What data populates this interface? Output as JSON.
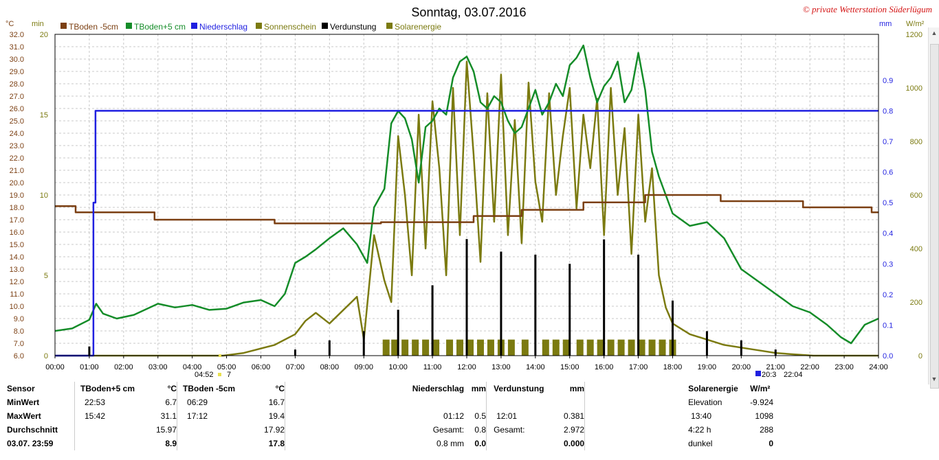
{
  "header": {
    "title": "Sonntag, 03.07.2016",
    "copyright": "© private Wetterstation Süderlügum",
    "unit_celsius": "°C",
    "unit_min": "min",
    "unit_mm": "mm",
    "unit_wm2": "W/m²"
  },
  "legend": [
    {
      "label": "TBoden -5cm",
      "color": "#7b3f12"
    },
    {
      "label": "TBoden+5 cm",
      "color": "#148c28"
    },
    {
      "label": "Niederschlag",
      "color": "#1f1fe0"
    },
    {
      "label": "Sonnenschein",
      "color": "#7b7a10"
    },
    {
      "label": "Verdunstung",
      "color": "#000000"
    },
    {
      "label": "Solarenergie",
      "color": "#7b7a10"
    }
  ],
  "sun_markers": {
    "sunrise": "04:52",
    "sunrise_tail": "7",
    "sunset": "20:3",
    "sunset_tail": "22:04"
  },
  "chart_data": {
    "type": "line",
    "title": "Sonntag, 03.07.2016",
    "x_label": "",
    "x_ticks": [
      "00:00",
      "01:00",
      "02:00",
      "03:00",
      "04:00",
      "05:00",
      "06:00",
      "07:00",
      "08:00",
      "09:00",
      "10:00",
      "11:00",
      "12:00",
      "13:00",
      "14:00",
      "15:00",
      "16:00",
      "17:00",
      "18:00",
      "19:00",
      "20:00",
      "21:00",
      "22:00",
      "23:00",
      "24:00"
    ],
    "y_celsius_ticks": [
      "6.0",
      "7.0",
      "8.0",
      "9.0",
      "10.0",
      "11.0",
      "12.0",
      "13.0",
      "14.0",
      "15.0",
      "16.0",
      "17.0",
      "18.0",
      "19.0",
      "20.0",
      "21.0",
      "22.0",
      "23.0",
      "24.0",
      "25.0",
      "26.0",
      "27.0",
      "28.0",
      "29.0",
      "30.0",
      "31.0",
      "32.0"
    ],
    "y_min_ticks": [
      "0",
      "5",
      "10",
      "15",
      "20"
    ],
    "y_mm_ticks": [
      "0.0",
      "0.1",
      "0.2",
      "0.3",
      "0.4",
      "0.5",
      "0.6",
      "0.7",
      "0.8",
      "0.9"
    ],
    "y_wm2_ticks": [
      "0",
      "200",
      "400",
      "600",
      "800",
      "1000",
      "1200"
    ],
    "ylim_celsius": [
      6,
      32
    ],
    "ylim_min": [
      0,
      20
    ],
    "ylim_mm": [
      0,
      1.05
    ],
    "ylim_wm2": [
      0,
      1200
    ],
    "grid": true,
    "series": [
      {
        "name": "TBoden -5cm",
        "axis": "celsius",
        "color": "#7b3f12",
        "step": true,
        "x": [
          0,
          0.6,
          0.6,
          2.9,
          2.9,
          6.4,
          6.4,
          9.5,
          9.5,
          12.2,
          12.2,
          13.6,
          13.6,
          15.4,
          15.4,
          17.2,
          17.2,
          19.4,
          19.4,
          21.8,
          21.8,
          23.8,
          23.8,
          24
        ],
        "y": [
          18.1,
          18.1,
          17.6,
          17.6,
          17.0,
          17.0,
          16.7,
          16.7,
          16.8,
          16.8,
          17.3,
          17.3,
          17.8,
          17.8,
          18.4,
          18.4,
          19.0,
          19.0,
          18.5,
          18.5,
          18.0,
          18.0,
          17.6,
          17.6
        ]
      },
      {
        "name": "TBoden+5 cm",
        "axis": "celsius",
        "color": "#148c28",
        "x": [
          0,
          0.5,
          1.0,
          1.2,
          1.4,
          1.8,
          2.3,
          3.0,
          3.5,
          4.0,
          4.5,
          5.0,
          5.5,
          6.0,
          6.4,
          6.7,
          7.0,
          7.3,
          7.6,
          8.0,
          8.4,
          8.8,
          9.1,
          9.3,
          9.6,
          9.8,
          10.0,
          10.2,
          10.4,
          10.6,
          10.8,
          11.0,
          11.2,
          11.4,
          11.6,
          11.8,
          12.0,
          12.2,
          12.4,
          12.6,
          12.8,
          13.0,
          13.2,
          13.4,
          13.6,
          13.8,
          14.0,
          14.2,
          14.4,
          14.6,
          14.8,
          15.0,
          15.2,
          15.4,
          15.6,
          15.8,
          16.0,
          16.2,
          16.4,
          16.6,
          16.8,
          17.0,
          17.2,
          17.4,
          17.6,
          18.0,
          18.5,
          19.0,
          19.5,
          20.0,
          20.5,
          21.0,
          21.5,
          22.0,
          22.5,
          22.9,
          23.2,
          23.6,
          24
        ],
        "y": [
          8.0,
          8.2,
          8.9,
          10.2,
          9.4,
          9.0,
          9.3,
          10.2,
          9.9,
          10.1,
          9.7,
          9.8,
          10.3,
          10.5,
          10.0,
          11.0,
          13.5,
          14.0,
          14.6,
          15.5,
          16.3,
          15.0,
          13.5,
          18.0,
          19.5,
          24.8,
          25.8,
          25.2,
          23.5,
          20.0,
          24.5,
          25.0,
          26.0,
          25.5,
          28.5,
          29.8,
          30.2,
          29.0,
          26.5,
          26.0,
          27.0,
          26.5,
          25.0,
          24.0,
          24.5,
          26.0,
          27.5,
          25.5,
          26.5,
          28.0,
          27.0,
          29.5,
          30.1,
          31.1,
          28.5,
          26.5,
          27.8,
          28.5,
          29.8,
          26.5,
          27.5,
          30.5,
          27.5,
          22.5,
          20.5,
          17.5,
          16.5,
          16.8,
          15.5,
          13.0,
          12.0,
          11.0,
          10.0,
          9.5,
          8.5,
          7.5,
          7.0,
          8.5,
          9.0
        ]
      },
      {
        "name": "Niederschlag",
        "axis": "mm",
        "color": "#1f1fe0",
        "step": true,
        "x": [
          0,
          1.12,
          1.12,
          1.18,
          1.18,
          24
        ],
        "y": [
          0,
          0,
          0.5,
          0.5,
          0.8,
          0.8
        ]
      },
      {
        "name": "Solarenergie",
        "axis": "wm2",
        "color": "#7b7a10",
        "x": [
          0,
          4.9,
          5.5,
          6.4,
          7.0,
          7.3,
          7.6,
          8.0,
          8.4,
          8.8,
          9.0,
          9.3,
          9.6,
          9.8,
          10.0,
          10.2,
          10.4,
          10.6,
          10.8,
          11.0,
          11.2,
          11.4,
          11.6,
          11.8,
          12.0,
          12.2,
          12.4,
          12.6,
          12.8,
          13.0,
          13.2,
          13.4,
          13.6,
          13.8,
          14.0,
          14.2,
          14.4,
          14.6,
          14.8,
          15.0,
          15.2,
          15.4,
          15.6,
          15.8,
          16.0,
          16.2,
          16.4,
          16.6,
          16.8,
          17.0,
          17.2,
          17.4,
          17.6,
          17.8,
          18.0,
          18.5,
          19.0,
          19.5,
          20.0,
          20.5,
          21.0,
          21.5,
          22.1,
          24
        ],
        "y": [
          0,
          0,
          10,
          40,
          80,
          130,
          160,
          120,
          170,
          220,
          60,
          450,
          280,
          200,
          820,
          600,
          300,
          900,
          400,
          950,
          700,
          300,
          1000,
          450,
          1098,
          750,
          350,
          980,
          500,
          1050,
          450,
          880,
          420,
          1020,
          650,
          500,
          980,
          600,
          820,
          1000,
          550,
          900,
          700,
          960,
          450,
          1000,
          600,
          850,
          380,
          900,
          500,
          700,
          300,
          180,
          120,
          80,
          60,
          40,
          30,
          20,
          10,
          5,
          0,
          0
        ]
      },
      {
        "name": "Sonnenschein",
        "axis": "min",
        "color": "#7b7a10",
        "bars": true,
        "x": [
          9.55,
          9.8,
          10.1,
          10.4,
          10.7,
          11.0,
          11.4,
          11.7,
          12.0,
          12.3,
          12.6,
          12.9,
          13.2,
          13.6,
          14.2,
          14.5,
          14.8,
          15.2,
          15.5,
          15.8,
          16.1,
          16.4,
          16.7,
          17.0,
          17.3,
          17.6,
          17.9
        ],
        "y": [
          1,
          1,
          1,
          1,
          1,
          1,
          1,
          1,
          1,
          1,
          1,
          1,
          1,
          1,
          1,
          1,
          1,
          1,
          1,
          1,
          1,
          1,
          1,
          1,
          1,
          1,
          1
        ]
      },
      {
        "name": "Verdunstung",
        "axis": "mm",
        "color": "#000000",
        "bars": true,
        "x": [
          1.0,
          7.0,
          8.0,
          9.0,
          10.0,
          11.0,
          12.0,
          13.0,
          14.0,
          15.0,
          16.0,
          17.0,
          18.0,
          19.0,
          20.0,
          21.0
        ],
        "y": [
          0.03,
          0.02,
          0.05,
          0.08,
          0.15,
          0.23,
          0.381,
          0.34,
          0.33,
          0.3,
          0.38,
          0.33,
          0.18,
          0.08,
          0.05,
          0.02
        ]
      }
    ]
  },
  "stats": {
    "sensor_label": "Sensor",
    "row_labels": [
      "MinWert",
      "MaxWert",
      "Durchschnitt",
      "03.07. 23:59"
    ],
    "t5_header": "TBoden+5 cm",
    "t5_unit": "°C",
    "t5_min_time": "22:53",
    "t5_min": "6.7",
    "t5_max_time": "15:42",
    "t5_max": "31.1",
    "t5_avg": "15.97",
    "t5_now": "8.9",
    "tm5_header": "TBoden -5cm",
    "tm5_unit": "°C",
    "tm5_min_time": "06:29",
    "tm5_min": "16.7",
    "tm5_max_time": "17:12",
    "tm5_max": "19.4",
    "tm5_avg": "17.92",
    "tm5_now": "17.8",
    "rain_header": "Niederschlag",
    "rain_unit": "mm",
    "rain_max_time": "01:12",
    "rain_max": "0.5",
    "rain_total_label": "Gesamt:",
    "rain_total": "0.8",
    "rain_now_label": "0.8 mm",
    "rain_now": "0.0",
    "evap_header": "Verdunstung",
    "evap_unit": "mm",
    "evap_max_time": "12:01",
    "evap_max": "0.381",
    "evap_total_label": "Gesamt:",
    "evap_total": "2.972",
    "evap_now": "0.000",
    "solar_header": "Solarenergie",
    "solar_unit": "W/m²",
    "elev_label": "Elevation",
    "elev_value": "-9.924",
    "solar_max_time": "13:40",
    "solar_max": "1098",
    "sun_hours": "4:22 h",
    "sun_minutes": "288",
    "dark_label": "dunkel",
    "dark_value": "0"
  }
}
